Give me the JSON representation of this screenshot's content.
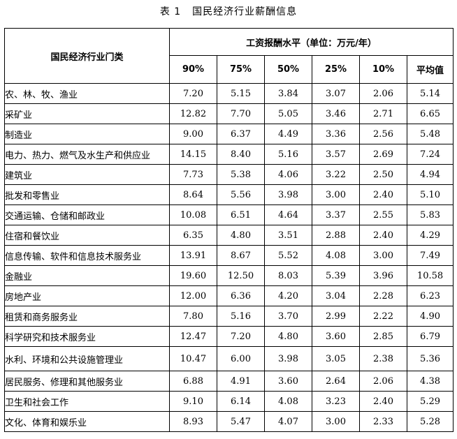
{
  "caption": {
    "number": "表 1",
    "title": "国民经济行业薪酬信息"
  },
  "table": {
    "row_header": "国民经济行业门类",
    "group_header": "工资报酬水平（单位：万元/年）",
    "columns": [
      "90%",
      "75%",
      "50%",
      "25%",
      "10%",
      "平均值"
    ],
    "rows": [
      {
        "category": "农、林、牧、渔业",
        "values": [
          "7.20",
          "5.15",
          "3.84",
          "3.07",
          "2.06",
          "5.14"
        ]
      },
      {
        "category": "采矿业",
        "values": [
          "12.82",
          "7.70",
          "5.05",
          "3.46",
          "2.71",
          "6.65"
        ]
      },
      {
        "category": "制造业",
        "values": [
          "9.00",
          "6.37",
          "4.49",
          "3.36",
          "2.56",
          "5.48"
        ]
      },
      {
        "category": "电力、热力、燃气及水生产和供应业",
        "values": [
          "14.15",
          "8.40",
          "5.16",
          "3.57",
          "2.69",
          "7.24"
        ]
      },
      {
        "category": "建筑业",
        "values": [
          "7.73",
          "5.38",
          "4.06",
          "3.22",
          "2.50",
          "4.94"
        ]
      },
      {
        "category": "批发和零售业",
        "values": [
          "8.64",
          "5.56",
          "3.98",
          "3.00",
          "2.40",
          "5.10"
        ]
      },
      {
        "category": "交通运输、仓储和邮政业",
        "values": [
          "10.08",
          "6.51",
          "4.64",
          "3.37",
          "2.55",
          "5.83"
        ]
      },
      {
        "category": "住宿和餐饮业",
        "values": [
          "6.35",
          "4.80",
          "3.51",
          "2.88",
          "2.40",
          "4.29"
        ]
      },
      {
        "category": "信息传输、软件和信息技术服务业",
        "values": [
          "13.91",
          "8.67",
          "5.52",
          "4.08",
          "3.00",
          "7.49"
        ]
      },
      {
        "category": "金融业",
        "values": [
          "19.60",
          "12.50",
          "8.03",
          "5.39",
          "3.96",
          "10.58"
        ]
      },
      {
        "category": "房地产业",
        "values": [
          "12.00",
          "6.36",
          "4.20",
          "3.04",
          "2.28",
          "6.23"
        ]
      },
      {
        "category": "租赁和商务服务业",
        "values": [
          "7.80",
          "5.16",
          "3.70",
          "2.99",
          "2.22",
          "4.90"
        ]
      },
      {
        "category": "科学研究和技术服务业",
        "values": [
          "12.47",
          "7.20",
          "4.80",
          "3.60",
          "2.85",
          "6.79"
        ]
      },
      {
        "category": "水利、环境和公共设施管理业",
        "values": [
          "10.47",
          "6.00",
          "3.98",
          "3.05",
          "2.38",
          "5.36"
        ]
      },
      {
        "category": "居民服务、修理和其他服务业",
        "values": [
          "6.88",
          "4.91",
          "3.60",
          "2.64",
          "2.06",
          "4.38"
        ]
      },
      {
        "category": "卫生和社会工作",
        "values": [
          "9.10",
          "6.14",
          "4.08",
          "3.23",
          "2.40",
          "5.29"
        ]
      },
      {
        "category": "文化、体育和娱乐业",
        "values": [
          "8.93",
          "5.47",
          "4.07",
          "3.00",
          "2.33",
          "5.28"
        ]
      }
    ]
  }
}
